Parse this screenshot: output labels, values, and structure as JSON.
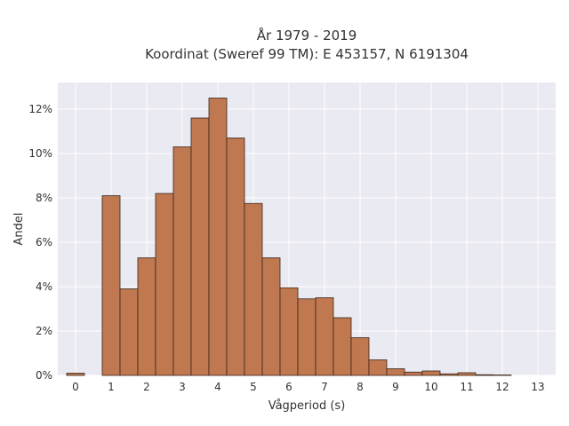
{
  "chart_data": {
    "type": "bar",
    "title_line1": "År 1979 - 2019",
    "title_line2": "Koordinat (Sweref 99 TM): E 453157, N 6191304",
    "xlabel": "Vågperiod (s)",
    "ylabel": "Andel",
    "x_ticks": [
      "0",
      "1",
      "2",
      "3",
      "4",
      "5",
      "6",
      "7",
      "8",
      "9",
      "10",
      "11",
      "12",
      "13"
    ],
    "y_ticks": [
      "0%",
      "2%",
      "4%",
      "6%",
      "8%",
      "10%",
      "12%"
    ],
    "y_tick_values": [
      0,
      2,
      4,
      6,
      8,
      10,
      12
    ],
    "xlim": [
      -0.5,
      13.5
    ],
    "ylim": [
      0,
      13.2
    ],
    "bin_width": 0.5,
    "bins": [
      {
        "x": 0.0,
        "value": 0.1
      },
      {
        "x": 1.0,
        "value": 8.1
      },
      {
        "x": 1.5,
        "value": 3.9
      },
      {
        "x": 2.0,
        "value": 5.3
      },
      {
        "x": 2.5,
        "value": 8.2
      },
      {
        "x": 3.0,
        "value": 10.3
      },
      {
        "x": 3.5,
        "value": 11.6
      },
      {
        "x": 4.0,
        "value": 12.5
      },
      {
        "x": 4.5,
        "value": 10.7
      },
      {
        "x": 5.0,
        "value": 7.75
      },
      {
        "x": 5.5,
        "value": 5.3
      },
      {
        "x": 6.0,
        "value": 3.95
      },
      {
        "x": 6.5,
        "value": 3.45
      },
      {
        "x": 7.0,
        "value": 3.5
      },
      {
        "x": 7.5,
        "value": 2.6
      },
      {
        "x": 8.0,
        "value": 1.7
      },
      {
        "x": 8.5,
        "value": 0.7
      },
      {
        "x": 9.0,
        "value": 0.3
      },
      {
        "x": 9.5,
        "value": 0.15
      },
      {
        "x": 10.0,
        "value": 0.2
      },
      {
        "x": 10.5,
        "value": 0.07
      },
      {
        "x": 11.0,
        "value": 0.12
      },
      {
        "x": 11.5,
        "value": 0.03
      },
      {
        "x": 12.0,
        "value": 0.02
      }
    ],
    "grid": true,
    "colors": {
      "bar_fill": "#c07850",
      "bar_stroke": "#3a2518",
      "plot_bg": "#eaeaf2",
      "grid": "#ffffff"
    }
  }
}
